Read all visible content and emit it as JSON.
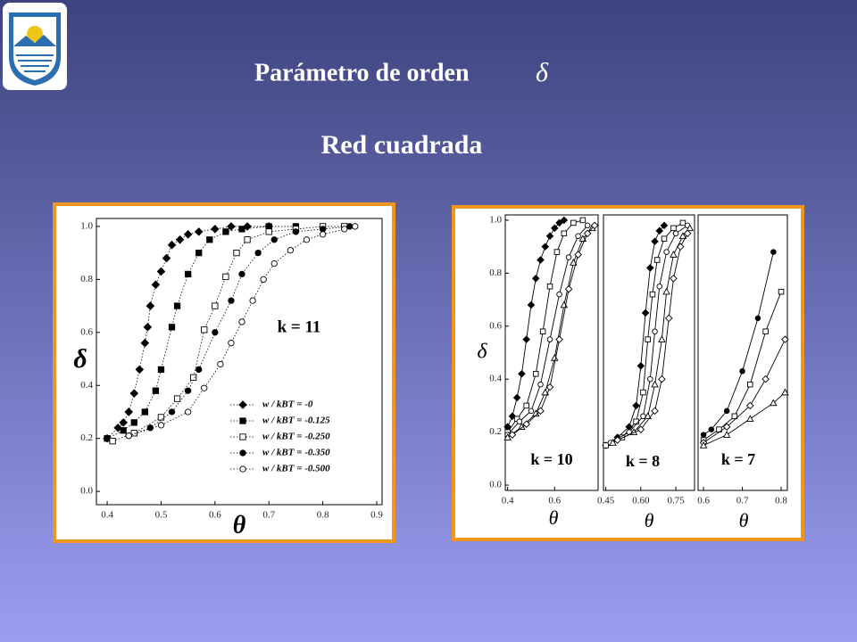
{
  "header": {
    "title": "Parámetro de orden",
    "symbol": "δ",
    "subtitle": "Red cuadrada"
  },
  "chart_data": [
    {
      "type": "line",
      "xlabel": "θ",
      "ylabel": "δ",
      "annotation": "k = 11",
      "line_style": "dotted",
      "legend": "lower right",
      "xlim": [
        0.38,
        0.91
      ],
      "ylim": [
        -0.05,
        1.03
      ],
      "xticks": [
        0.4,
        0.5,
        0.6,
        0.7,
        0.8,
        0.9
      ],
      "yticks": [
        {
          "value": 0,
          "label": "0.0"
        },
        0.2,
        0.4,
        0.6,
        0.8,
        {
          "value": 1,
          "label": "1.0"
        }
      ],
      "series": [
        {
          "name": "w / kBT = -0",
          "color": "#000000",
          "marker": "diamond-filled",
          "x": [
            0.4,
            0.42,
            0.43,
            0.44,
            0.45,
            0.46,
            0.47,
            0.475,
            0.48,
            0.49,
            0.5,
            0.51,
            0.52,
            0.535,
            0.55,
            0.57,
            0.6,
            0.63,
            0.66,
            0.7
          ],
          "values": [
            0.2,
            0.24,
            0.26,
            0.3,
            0.37,
            0.46,
            0.56,
            0.62,
            0.7,
            0.78,
            0.83,
            0.88,
            0.93,
            0.95,
            0.97,
            0.98,
            0.99,
            1.0,
            1.0,
            1.0
          ]
        },
        {
          "name": "w / kBT = -0.125",
          "color": "#000000",
          "marker": "square-filled",
          "x": [
            0.4,
            0.43,
            0.45,
            0.47,
            0.49,
            0.5,
            0.52,
            0.53,
            0.55,
            0.57,
            0.59,
            0.62,
            0.65,
            0.7,
            0.75
          ],
          "values": [
            0.2,
            0.23,
            0.26,
            0.3,
            0.38,
            0.46,
            0.62,
            0.7,
            0.82,
            0.9,
            0.95,
            0.98,
            0.99,
            1.0,
            1.0
          ]
        },
        {
          "name": "w / kBT = -0.250",
          "color": "#000000",
          "marker": "square-open",
          "x": [
            0.41,
            0.45,
            0.5,
            0.53,
            0.56,
            0.58,
            0.6,
            0.62,
            0.64,
            0.66,
            0.7,
            0.75,
            0.8,
            0.84
          ],
          "values": [
            0.19,
            0.22,
            0.28,
            0.35,
            0.43,
            0.61,
            0.7,
            0.81,
            0.9,
            0.95,
            0.98,
            0.99,
            1.0,
            1.0
          ]
        },
        {
          "name": "w / kBT = -0.350",
          "color": "#000000",
          "marker": "circle-filled",
          "x": [
            0.44,
            0.48,
            0.52,
            0.55,
            0.57,
            0.6,
            0.63,
            0.65,
            0.68,
            0.71,
            0.75,
            0.8,
            0.85
          ],
          "values": [
            0.21,
            0.24,
            0.3,
            0.38,
            0.46,
            0.6,
            0.72,
            0.82,
            0.9,
            0.95,
            0.98,
            0.99,
            1.0
          ]
        },
        {
          "name": "w / kBT = -0.500",
          "color": "#000000",
          "marker": "circle-open",
          "x": [
            0.44,
            0.5,
            0.55,
            0.58,
            0.61,
            0.63,
            0.65,
            0.67,
            0.69,
            0.71,
            0.74,
            0.77,
            0.8,
            0.84,
            0.86
          ],
          "values": [
            0.21,
            0.25,
            0.3,
            0.39,
            0.48,
            0.56,
            0.64,
            0.72,
            0.8,
            0.86,
            0.91,
            0.95,
            0.97,
            0.99,
            1.0
          ]
        }
      ]
    },
    {
      "type": "line",
      "xlabel": "θ",
      "ylabel": "δ",
      "annotation": "k = 10",
      "line_style": "solid",
      "xlim": [
        0.39,
        0.785
      ],
      "ylim": [
        -0.02,
        1.02
      ],
      "xticks": [
        0.4,
        0.6
      ],
      "yticks": [
        {
          "value": 0,
          "label": "0.0"
        },
        0.2,
        0.4,
        0.6,
        0.8,
        {
          "value": 1,
          "label": "1.0"
        }
      ],
      "series": [
        {
          "color": "#000000",
          "marker": "diamond-filled",
          "x": [
            0.4,
            0.42,
            0.44,
            0.46,
            0.48,
            0.5,
            0.52,
            0.54,
            0.56,
            0.58,
            0.6,
            0.62,
            0.64
          ],
          "values": [
            0.22,
            0.26,
            0.33,
            0.42,
            0.55,
            0.68,
            0.78,
            0.85,
            0.9,
            0.94,
            0.97,
            0.99,
            1.0
          ]
        },
        {
          "color": "#000000",
          "marker": "square-open",
          "x": [
            0.4,
            0.44,
            0.48,
            0.52,
            0.55,
            0.58,
            0.61,
            0.64,
            0.68,
            0.72
          ],
          "values": [
            0.2,
            0.25,
            0.3,
            0.42,
            0.58,
            0.75,
            0.88,
            0.95,
            0.99,
            1.0
          ]
        },
        {
          "color": "#000000",
          "marker": "circle-open",
          "x": [
            0.4,
            0.45,
            0.5,
            0.54,
            0.58,
            0.62,
            0.66,
            0.7,
            0.74
          ],
          "values": [
            0.19,
            0.24,
            0.28,
            0.38,
            0.55,
            0.72,
            0.86,
            0.94,
            0.98
          ]
        },
        {
          "color": "#000000",
          "marker": "triangle-open",
          "x": [
            0.4,
            0.46,
            0.52,
            0.56,
            0.6,
            0.64,
            0.68,
            0.72,
            0.76
          ],
          "values": [
            0.18,
            0.22,
            0.27,
            0.35,
            0.48,
            0.68,
            0.84,
            0.93,
            0.97
          ]
        },
        {
          "color": "#000000",
          "marker": "diamond-open",
          "x": [
            0.42,
            0.48,
            0.54,
            0.58,
            0.62,
            0.66,
            0.7,
            0.74,
            0.77
          ],
          "values": [
            0.19,
            0.23,
            0.28,
            0.37,
            0.55,
            0.74,
            0.87,
            0.95,
            0.98
          ]
        }
      ]
    },
    {
      "type": "line",
      "xlabel": "θ",
      "annotation": "k = 8",
      "line_style": "solid",
      "xlim": [
        0.44,
        0.83
      ],
      "ylim": [
        -0.02,
        1.02
      ],
      "xticks": [
        0.45,
        {
          "value": 0.6,
          "label": "0.60"
        },
        0.75
      ],
      "series": [
        {
          "color": "#000000",
          "marker": "diamond-filled",
          "x": [
            0.45,
            0.5,
            0.55,
            0.58,
            0.6,
            0.62,
            0.64,
            0.66,
            0.68,
            0.7
          ],
          "values": [
            0.15,
            0.18,
            0.22,
            0.3,
            0.45,
            0.65,
            0.82,
            0.92,
            0.96,
            0.98
          ]
        },
        {
          "color": "#000000",
          "marker": "square-open",
          "x": [
            0.45,
            0.52,
            0.58,
            0.61,
            0.63,
            0.65,
            0.67,
            0.7,
            0.74,
            0.78
          ],
          "values": [
            0.15,
            0.18,
            0.24,
            0.35,
            0.55,
            0.72,
            0.85,
            0.93,
            0.97,
            0.99
          ]
        },
        {
          "color": "#000000",
          "marker": "circle-open",
          "x": [
            0.47,
            0.55,
            0.61,
            0.64,
            0.66,
            0.68,
            0.71,
            0.75,
            0.8
          ],
          "values": [
            0.16,
            0.2,
            0.26,
            0.4,
            0.58,
            0.75,
            0.88,
            0.95,
            0.98
          ]
        },
        {
          "color": "#000000",
          "marker": "triangle-open",
          "x": [
            0.48,
            0.57,
            0.63,
            0.66,
            0.69,
            0.71,
            0.74,
            0.78,
            0.81
          ],
          "values": [
            0.16,
            0.2,
            0.26,
            0.38,
            0.55,
            0.73,
            0.87,
            0.94,
            0.97
          ]
        },
        {
          "color": "#000000",
          "marker": "diamond-open",
          "x": [
            0.5,
            0.6,
            0.66,
            0.69,
            0.72,
            0.74,
            0.77,
            0.8
          ],
          "values": [
            0.17,
            0.21,
            0.28,
            0.4,
            0.63,
            0.78,
            0.9,
            0.95
          ]
        }
      ]
    },
    {
      "type": "line",
      "xlabel": "θ",
      "annotation": "k = 7",
      "line_style": "solid",
      "xlim": [
        0.586,
        0.816
      ],
      "ylim": [
        -0.02,
        1.02
      ],
      "xticks": [
        0.6,
        0.7,
        0.8
      ],
      "series": [
        {
          "color": "#000000",
          "marker": "circle-filled",
          "x": [
            0.6,
            0.62,
            0.66,
            0.7,
            0.74,
            0.78
          ],
          "values": [
            0.19,
            0.21,
            0.28,
            0.43,
            0.63,
            0.88
          ]
        },
        {
          "color": "#000000",
          "marker": "square-open",
          "x": [
            0.6,
            0.64,
            0.68,
            0.72,
            0.76,
            0.8
          ],
          "values": [
            0.17,
            0.21,
            0.26,
            0.38,
            0.58,
            0.73
          ]
        },
        {
          "color": "#000000",
          "marker": "diamond-open",
          "x": [
            0.6,
            0.66,
            0.72,
            0.76,
            0.81
          ],
          "values": [
            0.16,
            0.22,
            0.3,
            0.4,
            0.55
          ]
        },
        {
          "color": "#000000",
          "marker": "triangle-open",
          "x": [
            0.6,
            0.66,
            0.72,
            0.78,
            0.81
          ],
          "values": [
            0.15,
            0.19,
            0.25,
            0.31,
            0.35
          ]
        }
      ]
    }
  ]
}
